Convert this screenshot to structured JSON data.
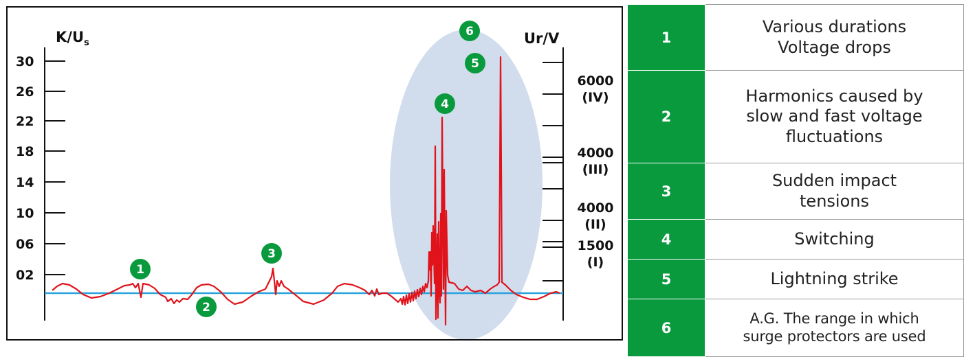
{
  "chart_data": {
    "type": "line",
    "left_axis": {
      "label": "K/U",
      "label_sub": "s",
      "ticks": [
        "30",
        "26",
        "22",
        "18",
        "14",
        "10",
        "06",
        "02"
      ],
      "tick_values": [
        30,
        26,
        22,
        18,
        14,
        10,
        6,
        2
      ]
    },
    "right_axis": {
      "label": "Ur/V",
      "labels": [
        {
          "value": "6000",
          "class": "(IV)"
        },
        {
          "value": "4000",
          "class": "(III)"
        },
        {
          "value": "4000",
          "class": "(II)"
        },
        {
          "value": "1500",
          "class": "(I)"
        }
      ]
    },
    "markers": [
      "1",
      "2",
      "3",
      "4",
      "5",
      "6"
    ],
    "colors": {
      "signal": "#e0131b",
      "baseline": "#2aa3dc",
      "marker": "#0a9a3e",
      "range": "#c9d7ea",
      "table_num": "#0a9a3e"
    }
  },
  "legend": {
    "rows": [
      {
        "number": "1",
        "lines": [
          "Various durations",
          "Voltage drops"
        ]
      },
      {
        "number": "2",
        "lines": [
          "Harmonics caused by",
          "slow and fast voltage",
          "fluctuations"
        ]
      },
      {
        "number": "3",
        "lines": [
          "Sudden impact",
          "tensions"
        ]
      },
      {
        "number": "4",
        "lines": [
          "Switching"
        ]
      },
      {
        "number": "5",
        "lines": [
          "Lightning strike"
        ]
      },
      {
        "number": "6",
        "lines": [
          "A.G. The range in which",
          "surge protectors are used"
        ]
      }
    ]
  }
}
